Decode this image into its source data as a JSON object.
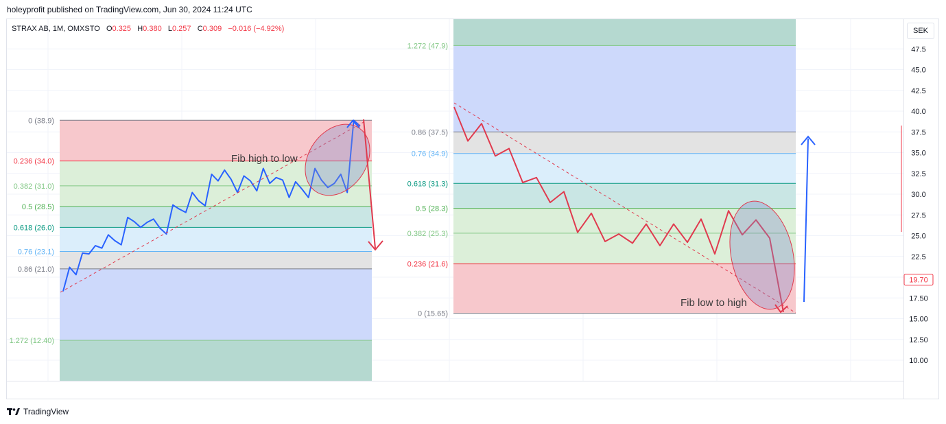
{
  "header": {
    "published": "holeyprofit published on TradingView.com, Jun 30, 2024 11:24 UTC"
  },
  "legend": {
    "symbol": "STRAX AB, 1M, OMXSTO",
    "o_label": "O",
    "o": "0.325",
    "h_label": "H",
    "h": "0.380",
    "l_label": "L",
    "l": "0.257",
    "c_label": "C",
    "c": "0.309",
    "change": "−0.016 (−4.92%)"
  },
  "currency": "SEK",
  "footer": {
    "brand": "TradingView"
  },
  "colors": {
    "up_line": "#2962ff",
    "down_line": "#e03a4e",
    "last_price": "#f23645",
    "fib_red": "#f7c8cc",
    "fib_green": "#dcefd9",
    "fib_teal": "#c9e6e4",
    "fib_lightblue": "#dbeefb",
    "fib_gray": "#e3e3e3",
    "fib_blue": "#cdd9fb",
    "fib_darkgreen": "#b5d9d0"
  },
  "chart_data": {
    "type": "line",
    "y_axis": {
      "unit": "SEK",
      "ticks": [
        "47.5",
        "45.0",
        "42.5",
        "40.0",
        "37.5",
        "35.0",
        "32.5",
        "30.0",
        "27.5",
        "25.0",
        "22.5",
        "20.0",
        "17.50",
        "15.00",
        "12.50",
        "10.00"
      ],
      "tick_values": [
        47.5,
        45.0,
        42.5,
        40.0,
        37.5,
        35.0,
        32.5,
        30.0,
        27.5,
        25.0,
        22.5,
        20.0,
        17.5,
        15.0,
        12.5,
        10.0
      ],
      "last_price_label": "19.70",
      "last_price": 19.7
    },
    "left_fib": {
      "annotation": "Fib high to low",
      "levels": [
        {
          "label": "0 (38.9)",
          "price": 38.9,
          "color": "#787b86"
        },
        {
          "label": "0.236 (34.0)",
          "price": 34.0,
          "color": "#f23645"
        },
        {
          "label": "0.382 (31.0)",
          "price": 31.0,
          "color": "#81c784"
        },
        {
          "label": "0.5 (28.5)",
          "price": 28.5,
          "color": "#4caf50"
        },
        {
          "label": "0.618 (26.0)",
          "price": 26.0,
          "color": "#089981"
        },
        {
          "label": "0.76 (23.1)",
          "price": 23.1,
          "color": "#64b5f6"
        },
        {
          "label": "0.86 (21.0)",
          "price": 21.0,
          "color": "#787b86"
        },
        {
          "label": "1.272 (12.40)",
          "price": 12.4,
          "color": "#81c784"
        }
      ],
      "series": {
        "name": "",
        "values": [
          18.3,
          21.2,
          20.3,
          22.9,
          22.8,
          23.8,
          23.5,
          25.1,
          24.4,
          23.9,
          27.2,
          26.7,
          26.0,
          26.6,
          27.0,
          25.9,
          25.2,
          28.7,
          28.2,
          27.8,
          30.2,
          29.2,
          28.6,
          32.4,
          31.6,
          32.9,
          31.8,
          30.2,
          32.2,
          31.6,
          30.4,
          33.1,
          31.3,
          32.0,
          31.7,
          29.6,
          31.5,
          30.6,
          29.6,
          33.1,
          31.7,
          30.8,
          31.3,
          32.4,
          30.2,
          38.9,
          38.2
        ]
      }
    },
    "right_fib": {
      "annotation": "Fib low to high",
      "levels": [
        {
          "label": "1.272 (47.9)",
          "price": 47.9,
          "color": "#81c784"
        },
        {
          "label": "0.86 (37.5)",
          "price": 37.5,
          "color": "#787b86"
        },
        {
          "label": "0.76 (34.9)",
          "price": 34.9,
          "color": "#64b5f6"
        },
        {
          "label": "0.618 (31.3)",
          "price": 31.3,
          "color": "#089981"
        },
        {
          "label": "0.5 (28.3)",
          "price": 28.3,
          "color": "#4caf50"
        },
        {
          "label": "0.382 (25.3)",
          "price": 25.3,
          "color": "#81c784"
        },
        {
          "label": "0.236 (21.6)",
          "price": 21.6,
          "color": "#f23645"
        },
        {
          "label": "0 (15.65)",
          "price": 15.65,
          "color": "#787b86"
        }
      ],
      "series": {
        "name": "",
        "values": [
          40.5,
          36.4,
          38.5,
          34.6,
          35.5,
          31.4,
          32.0,
          29.0,
          30.3,
          25.4,
          27.7,
          24.3,
          25.2,
          24.1,
          26.4,
          23.8,
          26.4,
          24.2,
          27.0,
          22.8,
          28.0,
          25.1,
          26.9,
          24.7,
          15.8
        ]
      }
    }
  }
}
